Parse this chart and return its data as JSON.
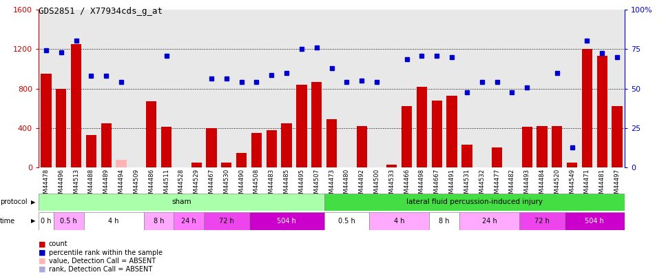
{
  "title": "GDS2851 / X77934cds_g_at",
  "samples": [
    "GSM44478",
    "GSM44496",
    "GSM44513",
    "GSM44488",
    "GSM44489",
    "GSM44494",
    "GSM44509",
    "GSM44486",
    "GSM44511",
    "GSM44528",
    "GSM44529",
    "GSM44467",
    "GSM44530",
    "GSM44490",
    "GSM44508",
    "GSM44483",
    "GSM44485",
    "GSM44495",
    "GSM44507",
    "GSM44473",
    "GSM44480",
    "GSM44492",
    "GSM44500",
    "GSM44533",
    "GSM44466",
    "GSM44498",
    "GSM44667",
    "GSM44491",
    "GSM44531",
    "GSM44532",
    "GSM44477",
    "GSM44482",
    "GSM44493",
    "GSM44484",
    "GSM44520",
    "GSM44549",
    "GSM44471",
    "GSM44481",
    "GSM44497"
  ],
  "count_values": [
    950,
    800,
    1250,
    330,
    450,
    80,
    0,
    670,
    410,
    0,
    50,
    400,
    50,
    150,
    350,
    380,
    450,
    840,
    870,
    490,
    0,
    420,
    0,
    30,
    620,
    820,
    680,
    730,
    230,
    0,
    200,
    0,
    410,
    420,
    420,
    50,
    1200,
    1130,
    620
  ],
  "count_absent": [
    false,
    false,
    false,
    false,
    false,
    true,
    true,
    false,
    false,
    true,
    false,
    false,
    false,
    false,
    false,
    false,
    false,
    false,
    false,
    false,
    true,
    false,
    true,
    false,
    false,
    false,
    false,
    false,
    false,
    true,
    false,
    true,
    false,
    false,
    false,
    false,
    false,
    false,
    false
  ],
  "rank_values": [
    1190,
    1170,
    1290,
    930,
    930,
    870,
    0,
    0,
    1130,
    0,
    0,
    900,
    900,
    870,
    870,
    940,
    960,
    1200,
    1220,
    1010,
    870,
    880,
    870,
    0,
    1100,
    1130,
    1130,
    1120,
    760,
    870,
    870,
    760,
    810,
    0,
    960,
    200,
    1290,
    1160,
    1120
  ],
  "rank_absent": [
    false,
    false,
    false,
    false,
    false,
    false,
    true,
    true,
    false,
    true,
    true,
    false,
    false,
    false,
    false,
    false,
    false,
    false,
    false,
    false,
    false,
    false,
    false,
    true,
    false,
    false,
    false,
    false,
    false,
    false,
    false,
    false,
    false,
    true,
    false,
    false,
    false,
    false,
    false
  ],
  "protocol_groups": [
    {
      "label": "sham",
      "start": 0,
      "end": 18,
      "color": "#aaffaa"
    },
    {
      "label": "lateral fluid percussion-induced injury",
      "start": 19,
      "end": 38,
      "color": "#44dd44"
    }
  ],
  "time_groups": [
    {
      "label": "0 h",
      "start": 0,
      "end": 0,
      "color": "#ffffff"
    },
    {
      "label": "0.5 h",
      "start": 1,
      "end": 2,
      "color": "#ffaaff"
    },
    {
      "label": "4 h",
      "start": 3,
      "end": 6,
      "color": "#ffffff"
    },
    {
      "label": "8 h",
      "start": 7,
      "end": 8,
      "color": "#ffaaff"
    },
    {
      "label": "24 h",
      "start": 9,
      "end": 10,
      "color": "#ff77ff"
    },
    {
      "label": "72 h",
      "start": 11,
      "end": 13,
      "color": "#ee44ee"
    },
    {
      "label": "504 h",
      "start": 14,
      "end": 18,
      "color": "#cc00cc"
    },
    {
      "label": "0.5 h",
      "start": 19,
      "end": 21,
      "color": "#ffffff"
    },
    {
      "label": "4 h",
      "start": 22,
      "end": 25,
      "color": "#ffaaff"
    },
    {
      "label": "8 h",
      "start": 26,
      "end": 27,
      "color": "#ffffff"
    },
    {
      "label": "24 h",
      "start": 28,
      "end": 31,
      "color": "#ffaaff"
    },
    {
      "label": "72 h",
      "start": 32,
      "end": 34,
      "color": "#ee44ee"
    },
    {
      "label": "504 h",
      "start": 35,
      "end": 38,
      "color": "#cc00cc"
    }
  ],
  "ylim_left": [
    0,
    1600
  ],
  "ylim_right": [
    0,
    100
  ],
  "yticks_left": [
    0,
    400,
    800,
    1200,
    1600
  ],
  "yticks_right": [
    0,
    25,
    50,
    75,
    100
  ],
  "bar_color_present": "#CC0000",
  "bar_color_absent": "#FFB3B3",
  "marker_color_present": "#0000CC",
  "marker_color_absent": "#AAAADD",
  "plot_bg": "#e8e8e8",
  "fig_bg": "#ffffff"
}
